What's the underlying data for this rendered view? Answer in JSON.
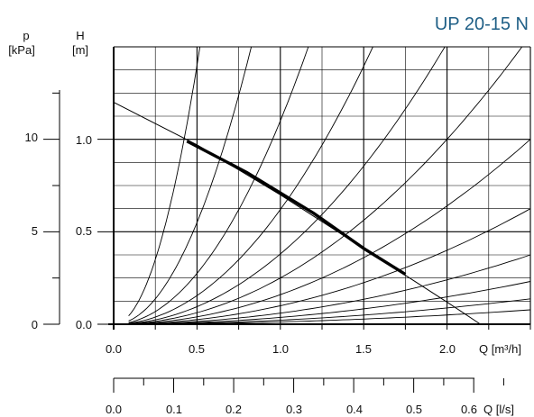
{
  "chart_data": {
    "type": "line",
    "title": "UP 20-15 N",
    "left_axes": {
      "p": {
        "label": "p",
        "unit": "[kPa]",
        "ticks": [
          "0",
          "5",
          "10"
        ]
      },
      "H": {
        "label": "H",
        "unit": "[m]",
        "ticks": [
          "0.0",
          "0.5",
          "1.0"
        ]
      }
    },
    "bottom_axes": {
      "Q_m3h": {
        "label": "Q [m³/h]",
        "ticks": [
          "0.0",
          "0.5",
          "1.0",
          "1.5",
          "2.0"
        ],
        "range": [
          0,
          2.5
        ]
      },
      "Q_ls": {
        "label": "Q [l/s]",
        "ticks": [
          "0.0",
          "0.1",
          "0.2",
          "0.3",
          "0.4",
          "0.5",
          "0.6"
        ]
      }
    },
    "ylim": [
      0,
      1.5
    ],
    "xlim": [
      0,
      2.5
    ],
    "grid": true,
    "pump_curve": {
      "x": [
        0.0,
        0.5,
        1.0,
        1.5,
        2.0,
        2.2
      ],
      "y": [
        1.2,
        0.97,
        0.7,
        0.41,
        0.12,
        0.0
      ]
    },
    "operating_segment": {
      "x": [
        0.44,
        0.8,
        1.2,
        1.5,
        1.75
      ],
      "y": [
        0.99,
        0.82,
        0.6,
        0.41,
        0.27
      ]
    },
    "system_curve_k": [
      5.6,
      2.2,
      1.1,
      0.62,
      0.38,
      0.25,
      0.16,
      0.1,
      0.06,
      0.037,
      0.022,
      0.0125
    ],
    "system_curve_x_start": 0.09
  }
}
